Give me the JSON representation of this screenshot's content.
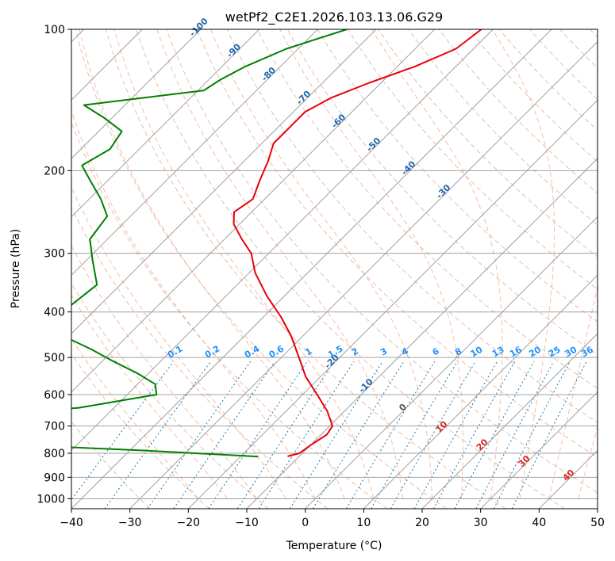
{
  "chart_data": {
    "type": "skew-t",
    "title": "wetPf2_C2E1.2026.103.13.06.G29",
    "xlabel": "Temperature (°C)",
    "ylabel": "Pressure (hPa)",
    "xlim": [
      -40,
      50
    ],
    "ylim": [
      1050,
      100
    ],
    "x_ticks": [
      -40,
      -30,
      -20,
      -10,
      0,
      10,
      20,
      30,
      40,
      50
    ],
    "x_tick_labels": [
      "−40",
      "−30",
      "−20",
      "−10",
      "0",
      "10",
      "20",
      "30",
      "40",
      "50"
    ],
    "y_ticks": [
      100,
      200,
      300,
      400,
      500,
      600,
      700,
      800,
      900,
      1000
    ],
    "y_tick_labels": [
      "100",
      "200",
      "300",
      "400",
      "500",
      "600",
      "700",
      "800",
      "900",
      "1000"
    ],
    "colors": {
      "temperature": "#e8000b",
      "dewpoint": "#008000",
      "isotherm": "#a0a0a0",
      "grid": "#a0a0a0",
      "dry_adiabat": "#d4a58a",
      "moist_adiabat": "#f4a582",
      "mixing_ratio": "#1f77b4",
      "isotherm_label_cold": "#2166ac",
      "isotherm_label_warm": "#d62728",
      "zero_label": "#555555",
      "mixing_label": "#1e90ff"
    },
    "isotherm_labels": [
      {
        "t": -100,
        "text": "-100"
      },
      {
        "t": -90,
        "text": "-90"
      },
      {
        "t": -80,
        "text": "-80"
      },
      {
        "t": -70,
        "text": "-70"
      },
      {
        "t": -60,
        "text": "-60"
      },
      {
        "t": -50,
        "text": "-50"
      },
      {
        "t": -40,
        "text": "-40"
      },
      {
        "t": -30,
        "text": "-30"
      },
      {
        "t": -20,
        "text": "-20"
      },
      {
        "t": -10,
        "text": "-10"
      },
      {
        "t": 0,
        "text": "0"
      },
      {
        "t": 10,
        "text": "10"
      },
      {
        "t": 20,
        "text": "20"
      },
      {
        "t": 30,
        "text": "30"
      },
      {
        "t": 40,
        "text": "40"
      }
    ],
    "mixing_ratio_labels": [
      "0.1",
      "0.2",
      "0.4",
      "0.6",
      "1",
      "1.5",
      "2",
      "3",
      "4",
      "6",
      "8",
      "10",
      "13",
      "16",
      "20",
      "25",
      "30",
      "36"
    ],
    "series": [
      {
        "name": "Temperature",
        "points": [
          [
            100,
            -52
          ],
          [
            110,
            -53
          ],
          [
            120,
            -57
          ],
          [
            130,
            -62
          ],
          [
            140,
            -66
          ],
          [
            150,
            -68
          ],
          [
            160,
            -68
          ],
          [
            175,
            -68
          ],
          [
            190,
            -66
          ],
          [
            210,
            -64
          ],
          [
            230,
            -62
          ],
          [
            245,
            -63
          ],
          [
            260,
            -61
          ],
          [
            280,
            -57
          ],
          [
            300,
            -53
          ],
          [
            330,
            -49
          ],
          [
            370,
            -43
          ],
          [
            410,
            -37
          ],
          [
            450,
            -32
          ],
          [
            500,
            -27
          ],
          [
            550,
            -22.5
          ],
          [
            600,
            -17.5
          ],
          [
            650,
            -13
          ],
          [
            700,
            -9.5
          ],
          [
            730,
            -9
          ],
          [
            770,
            -10
          ],
          [
            800,
            -10.5
          ],
          [
            812,
            -12
          ]
        ]
      },
      {
        "name": "Dewpoint",
        "points": [
          [
            100,
            -75
          ],
          [
            110,
            -82
          ],
          [
            120,
            -86
          ],
          [
            128,
            -88
          ],
          [
            135,
            -89
          ],
          [
            145,
            -107
          ],
          [
            155,
            -101
          ],
          [
            165,
            -96
          ],
          [
            180,
            -95
          ],
          [
            195,
            -97
          ],
          [
            210,
            -93
          ],
          [
            230,
            -88
          ],
          [
            250,
            -84
          ],
          [
            280,
            -83
          ],
          [
            310,
            -79
          ],
          [
            350,
            -74
          ],
          [
            390,
            -75
          ],
          [
            420,
            -77
          ],
          [
            450,
            -71
          ],
          [
            480,
            -64
          ],
          [
            510,
            -58
          ],
          [
            540,
            -52
          ],
          [
            570,
            -47
          ],
          [
            600,
            -45
          ],
          [
            640,
            -56
          ],
          [
            660,
            -68
          ],
          [
            680,
            -69
          ],
          [
            700,
            -64
          ],
          [
            720,
            -71
          ],
          [
            748,
            -52
          ],
          [
            765,
            -63
          ],
          [
            790,
            -37
          ],
          [
            813,
            -17
          ]
        ]
      }
    ]
  }
}
